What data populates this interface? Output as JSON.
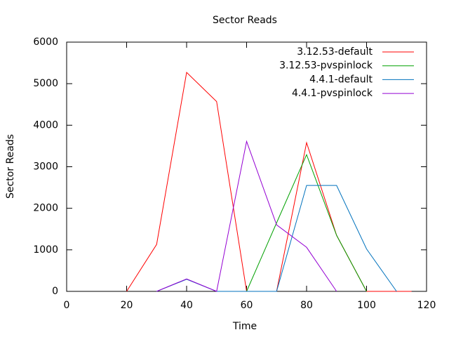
{
  "chart_data": {
    "type": "line",
    "title": "Sector Reads",
    "x_label": "Time",
    "y_label": "Sector Reads",
    "series": [
      {
        "name": "3.12.53-default",
        "color": "#ff0000",
        "x": [
          20,
          30,
          40,
          50,
          60,
          70,
          80,
          90,
          100,
          105,
          115
        ],
        "values": [
          0,
          1130,
          5270,
          4570,
          0,
          0,
          3580,
          1350,
          0,
          0,
          0
        ]
      },
      {
        "name": "3.12.53-pvspinlock",
        "color": "#00a000",
        "x": [
          60,
          70,
          80,
          90,
          100
        ],
        "values": [
          0,
          1650,
          3290,
          1350,
          0
        ]
      },
      {
        "name": "4.4.1-default",
        "color": "#0072bd",
        "x": [
          30,
          40,
          50,
          60,
          70,
          80,
          90,
          100,
          110
        ],
        "values": [
          0,
          290,
          0,
          0,
          0,
          2550,
          2550,
          1020,
          0
        ]
      },
      {
        "name": "4.4.1-pvspinlock",
        "color": "#9400d3",
        "x": [
          30,
          40,
          50,
          60,
          70,
          80,
          90
        ],
        "values": [
          0,
          300,
          0,
          3610,
          1600,
          1060,
          0
        ]
      }
    ],
    "xlim": [
      0,
      120
    ],
    "xticks": [
      0,
      20,
      40,
      60,
      80,
      100,
      120
    ],
    "ylim": [
      0,
      6000
    ],
    "yticks": [
      0,
      1000,
      2000,
      3000,
      4000,
      5000,
      6000
    ],
    "legend": "top-right",
    "grid": false
  }
}
